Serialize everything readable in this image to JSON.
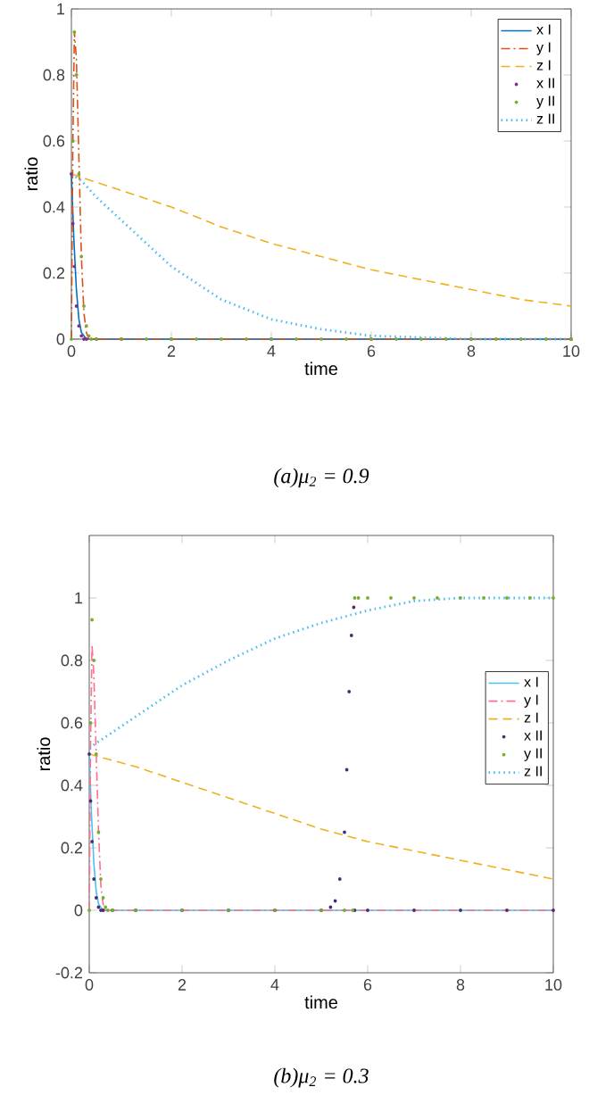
{
  "chart_data": [
    {
      "type": "line",
      "xlabel": "time",
      "ylabel": "ratio",
      "xlim": [
        0,
        10
      ],
      "ylim": [
        0,
        1
      ],
      "xticks": [
        0,
        2,
        4,
        6,
        8,
        10
      ],
      "yticks": [
        0,
        0.2,
        0.4,
        0.6,
        0.8,
        1
      ],
      "legend": "top right",
      "annotations": [
        "(a)μ$_{2}$ = 0.9"
      ],
      "series": [
        {
          "name": "x I",
          "color": "#0072bd",
          "line_style": "solid",
          "x": [
            0,
            0.05,
            0.1,
            0.15,
            0.2,
            0.3,
            10
          ],
          "values": [
            0.5,
            0.3,
            0.15,
            0.06,
            0.02,
            0,
            0
          ]
        },
        {
          "name": "y I",
          "color": "#d95319",
          "line_style": "dashdot",
          "x": [
            0,
            0.03,
            0.06,
            0.1,
            0.15,
            0.2,
            0.25,
            0.3,
            0.35,
            10
          ],
          "values": [
            0,
            0.6,
            0.93,
            0.85,
            0.55,
            0.25,
            0.08,
            0.02,
            0,
            0
          ]
        },
        {
          "name": "z I",
          "color": "#edb120",
          "line_style": "dashed",
          "x": [
            0,
            1,
            2,
            3,
            4,
            5,
            6,
            7,
            8,
            9,
            10
          ],
          "values": [
            0.5,
            0.45,
            0.4,
            0.34,
            0.29,
            0.25,
            0.21,
            0.18,
            0.15,
            0.12,
            0.1
          ]
        },
        {
          "name": "x II",
          "color": "#7e2f8e",
          "type": "scatter",
          "marker": "circle",
          "x": [
            0,
            0.03,
            0.06,
            0.1,
            0.15,
            0.2,
            0.25,
            0.3,
            0.5,
            1,
            2,
            4,
            6,
            8,
            10
          ],
          "values": [
            0.5,
            0.35,
            0.22,
            0.1,
            0.04,
            0.01,
            0,
            0,
            0,
            0,
            0,
            0,
            0,
            0,
            0
          ]
        },
        {
          "name": "y II",
          "color": "#77ac30",
          "type": "scatter",
          "marker": "circle",
          "x": [
            0,
            0.03,
            0.06,
            0.1,
            0.15,
            0.2,
            0.25,
            0.3,
            0.35,
            0.4,
            0.5,
            1,
            1.5,
            2,
            2.5,
            3,
            3.5,
            4,
            4.5,
            5,
            5.5,
            6,
            6.5,
            7,
            7.5,
            8,
            8.5,
            9,
            9.5,
            10
          ],
          "values": [
            0,
            0.6,
            0.93,
            0.8,
            0.5,
            0.25,
            0.1,
            0.04,
            0.01,
            0,
            0,
            0,
            0,
            0,
            0,
            0,
            0,
            0,
            0,
            0,
            0,
            0,
            0,
            0,
            0,
            0,
            0,
            0,
            0,
            0
          ]
        },
        {
          "name": "z II",
          "color": "#4dbeee",
          "line_style": "dotted",
          "x": [
            0,
            0.2,
            0.5,
            1,
            1.5,
            2,
            2.5,
            3,
            3.5,
            4,
            5,
            6,
            8,
            10
          ],
          "values": [
            0.5,
            0.48,
            0.43,
            0.36,
            0.29,
            0.22,
            0.17,
            0.12,
            0.09,
            0.06,
            0.03,
            0.01,
            0,
            0
          ]
        }
      ]
    },
    {
      "type": "line",
      "xlabel": "time",
      "ylabel": "ratio",
      "xlim": [
        0,
        10
      ],
      "ylim": [
        -0.2,
        1.2
      ],
      "xticks": [
        0,
        2,
        4,
        6,
        8,
        10
      ],
      "yticks": [
        -0.2,
        0,
        0.2,
        0.4,
        0.6,
        0.8,
        1
      ],
      "legend": "right",
      "annotations": [
        "(b)μ$_{2}$ = 0.3"
      ],
      "series": [
        {
          "name": "x I",
          "color": "#4dbeee",
          "line_style": "solid",
          "x": [
            0,
            0.05,
            0.1,
            0.15,
            0.2,
            0.3,
            10
          ],
          "values": [
            0.5,
            0.3,
            0.15,
            0.06,
            0.02,
            0,
            0
          ]
        },
        {
          "name": "y I",
          "color": "#ff6f8f",
          "line_style": "dashdot",
          "x": [
            0,
            0.03,
            0.06,
            0.1,
            0.15,
            0.2,
            0.25,
            0.3,
            0.35,
            10
          ],
          "values": [
            0,
            0.55,
            0.85,
            0.75,
            0.5,
            0.25,
            0.08,
            0.02,
            0,
            0
          ]
        },
        {
          "name": "z I",
          "color": "#edb120",
          "line_style": "dashed",
          "x": [
            0,
            1,
            2,
            3,
            4,
            5,
            6,
            7,
            8,
            9,
            10
          ],
          "values": [
            0.5,
            0.46,
            0.41,
            0.36,
            0.31,
            0.26,
            0.22,
            0.19,
            0.16,
            0.13,
            0.1
          ]
        },
        {
          "name": "x II",
          "color": "#4b2c6f",
          "type": "scatter",
          "marker": "circle",
          "x": [
            0,
            0.03,
            0.06,
            0.1,
            0.15,
            0.2,
            0.25,
            0.3,
            0.5,
            1,
            2,
            3,
            4,
            5,
            5.2,
            5.3,
            5.4,
            5.5,
            5.55,
            5.6,
            5.65,
            5.7,
            5.72,
            6,
            7,
            8,
            9,
            10
          ],
          "values": [
            0.5,
            0.35,
            0.22,
            0.1,
            0.04,
            0.01,
            0,
            0,
            0,
            0,
            0,
            0,
            0,
            0,
            0.01,
            0.03,
            0.1,
            0.25,
            0.45,
            0.7,
            0.88,
            0.97,
            0,
            0,
            0,
            0,
            0,
            0
          ]
        },
        {
          "name": "y II",
          "color": "#77ac30",
          "type": "scatter",
          "marker": "circle",
          "x": [
            0,
            0.03,
            0.06,
            0.1,
            0.15,
            0.2,
            0.25,
            0.3,
            0.35,
            0.4,
            0.5,
            1,
            2,
            3,
            4,
            5,
            5.5,
            5.68,
            5.72,
            5.8,
            6,
            6.5,
            7,
            7.5,
            8,
            8.5,
            9,
            9.5,
            10
          ],
          "values": [
            0,
            0.6,
            0.93,
            0.8,
            0.5,
            0.25,
            0.1,
            0.04,
            0.01,
            0,
            0,
            0,
            0,
            0,
            0,
            0,
            0,
            0,
            1,
            1,
            1,
            1,
            1,
            1,
            1,
            1,
            1,
            1,
            1
          ]
        },
        {
          "name": "z II",
          "color": "#4dbeee",
          "line_style": "dotted",
          "x": [
            0,
            1,
            2,
            3,
            4,
            5,
            6,
            7,
            8,
            9,
            10
          ],
          "values": [
            0.52,
            0.62,
            0.72,
            0.8,
            0.87,
            0.92,
            0.96,
            0.99,
            1,
            1,
            1
          ]
        }
      ]
    }
  ]
}
